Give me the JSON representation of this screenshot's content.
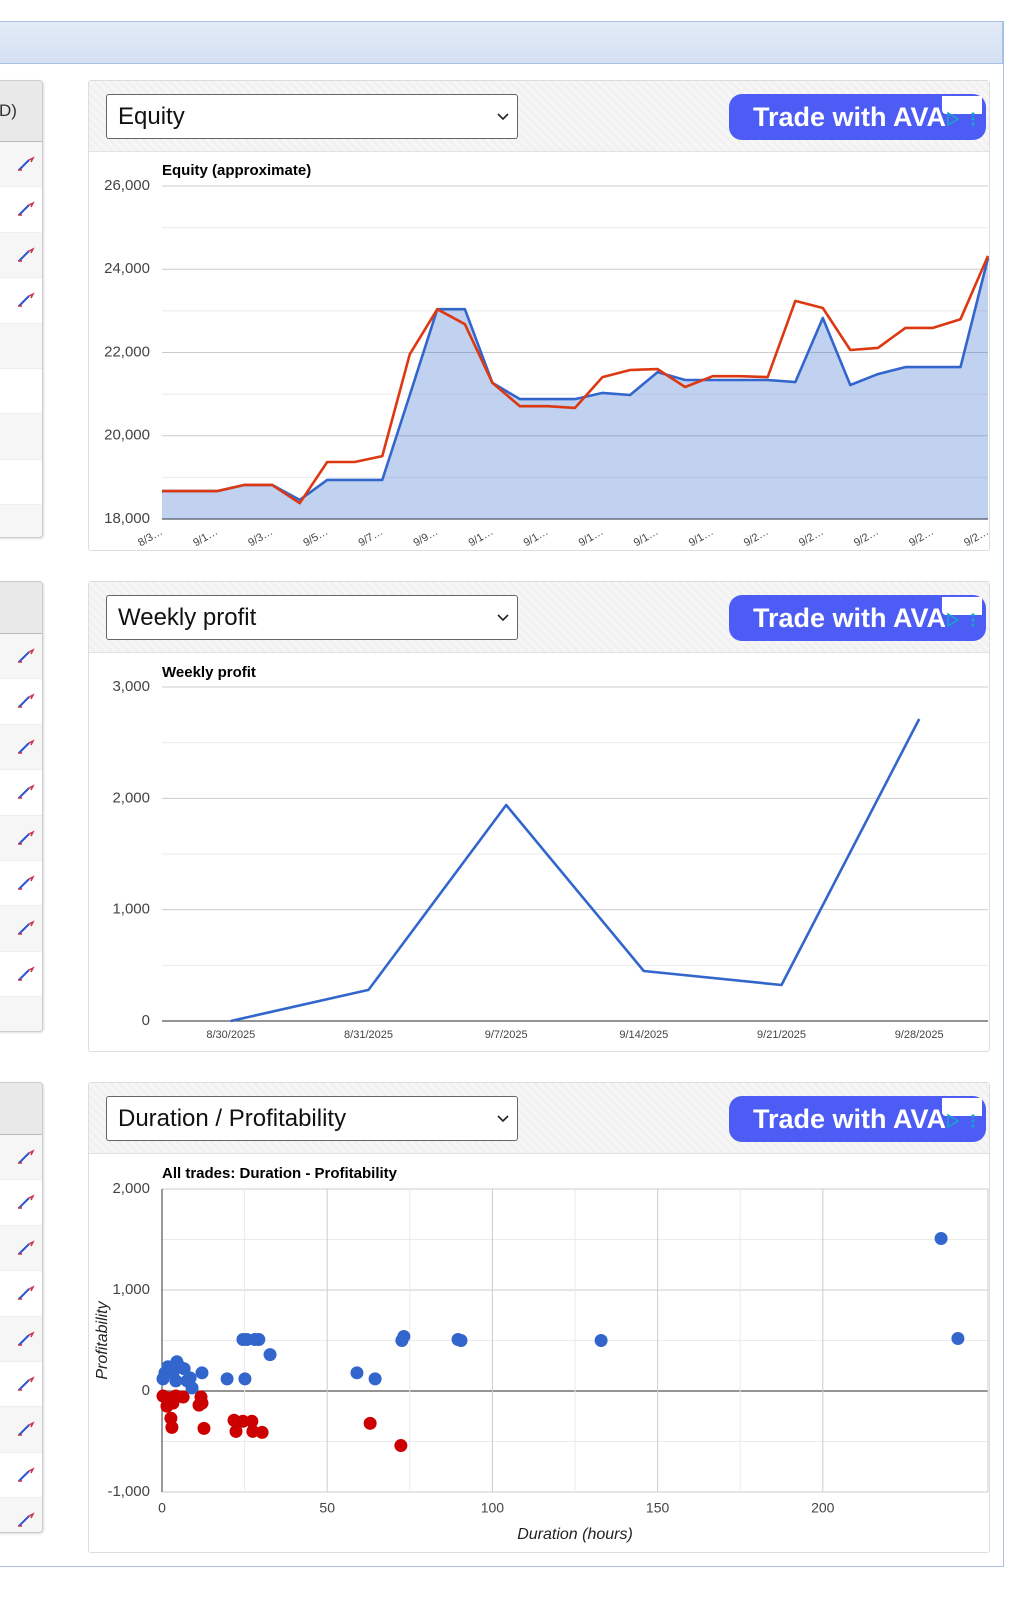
{
  "left_table": {
    "header": "D)"
  },
  "panels": [
    {
      "dropdown": "Equity",
      "ad": "Trade with AVA"
    },
    {
      "dropdown": "Weekly profit",
      "ad": "Trade with AVA"
    },
    {
      "dropdown": "Duration / Profitability",
      "ad": "Trade with AVA"
    }
  ],
  "chart_data": [
    {
      "type": "line",
      "title": "Equity (approximate)",
      "categories": [
        "8/3…",
        null,
        "9/1…",
        null,
        "9/3…",
        null,
        "9/5…",
        null,
        "9/7…",
        null,
        "9/9…",
        null,
        "9/1…",
        null,
        "9/1…",
        null,
        "9/1…",
        null,
        "9/1…",
        null,
        "9/1…",
        null,
        "9/2…",
        null,
        "9/2…",
        null,
        "9/2…",
        null,
        "9/2…",
        null,
        "9/2…"
      ],
      "series": [
        {
          "color": "#3366cc",
          "area": true,
          "values": [
            18670,
            18670,
            18670,
            18820,
            18820,
            18460,
            18940,
            18940,
            18940,
            20980,
            23040,
            23040,
            21270,
            20880,
            20880,
            20880,
            21030,
            20980,
            21530,
            21340,
            21340,
            21340,
            21340,
            21290,
            22830,
            21220,
            21480,
            21650,
            21650,
            21650,
            24270
          ]
        },
        {
          "color": "#dc3912",
          "values": [
            18670,
            18670,
            18670,
            18820,
            18820,
            18380,
            19370,
            19370,
            19510,
            21960,
            23040,
            22680,
            21270,
            20710,
            20710,
            20670,
            21410,
            21580,
            21600,
            21170,
            21430,
            21430,
            21410,
            23240,
            23070,
            22060,
            22110,
            22590,
            22590,
            22800,
            24320
          ]
        }
      ],
      "ylim": [
        18000,
        26000
      ],
      "yticks": [
        {
          "value": 18000,
          "label": "18,000"
        },
        {
          "value": 20000,
          "label": "20,000"
        },
        {
          "value": 22000,
          "label": "22,000"
        },
        {
          "value": 24000,
          "label": "24,000"
        },
        {
          "value": 26000,
          "label": "26,000"
        }
      ],
      "grid": true
    },
    {
      "type": "line",
      "title": "Weekly profit",
      "categories": [
        "8/30/2025",
        "8/31/2025",
        "9/7/2025",
        "9/14/2025",
        "9/21/2025",
        "9/28/2025"
      ],
      "series": [
        {
          "color": "#3366cc",
          "values": [
            0,
            279,
            1940,
            449,
            323,
            2713
          ]
        }
      ],
      "ylim": [
        0,
        3000
      ],
      "yticks": [
        0,
        {
          "value": 1000,
          "label": "1,000"
        },
        {
          "value": 2000,
          "label": "2,000"
        },
        {
          "value": 3000,
          "label": "3,000"
        }
      ],
      "grid": true
    },
    {
      "type": "scatter",
      "title": "All trades: Duration - Profitability",
      "x_label": "Duration (hours)",
      "y_label": "Profitability",
      "series": [
        {
          "color": "#3366cc",
          "x": [
            0.3,
            0.9,
            1.8,
            2.7,
            3.3,
            4.5,
            5.4,
            6.7,
            4.2,
            7.6,
            8.5,
            9.1,
            12.1,
            19.7,
            25.1,
            24.5,
            25.7,
            28.1,
            29.3,
            32.7,
            59,
            64.5,
            72.6,
            73.2,
            89.6,
            90.5,
            132.9,
            235.8,
            240.9
          ],
          "values": [
            120,
            180,
            240,
            210,
            180,
            290,
            240,
            220,
            100,
            100,
            130,
            30,
            180,
            120,
            120,
            510,
            510,
            510,
            510,
            360,
            180,
            120,
            500,
            540,
            510,
            500,
            500,
            1510,
            520
          ]
        },
        {
          "color": "#cc0000",
          "x": [
            0.3,
            1.5,
            2.4,
            3.3,
            4.2,
            2.7,
            3.0,
            6.4,
            11.8,
            11.2,
            12.1,
            12.7,
            21.8,
            22.4,
            24.5,
            27.2,
            27.5,
            30.3,
            63,
            72.3
          ],
          "values": [
            -50,
            -150,
            -70,
            -120,
            -50,
            -270,
            -360,
            -60,
            -60,
            -140,
            -120,
            -370,
            -290,
            -400,
            -300,
            -300,
            -400,
            -410,
            -320,
            -540
          ]
        }
      ],
      "xlim": [
        0,
        250
      ],
      "xticks": [
        0,
        50,
        100,
        150,
        200
      ],
      "ylim": [
        -1000,
        2000
      ],
      "yticks": [
        {
          "value": -1000,
          "label": "-1,000"
        },
        0,
        {
          "value": 1000,
          "label": "1,000"
        },
        {
          "value": 2000,
          "label": "2,000"
        }
      ],
      "grid": true
    }
  ]
}
